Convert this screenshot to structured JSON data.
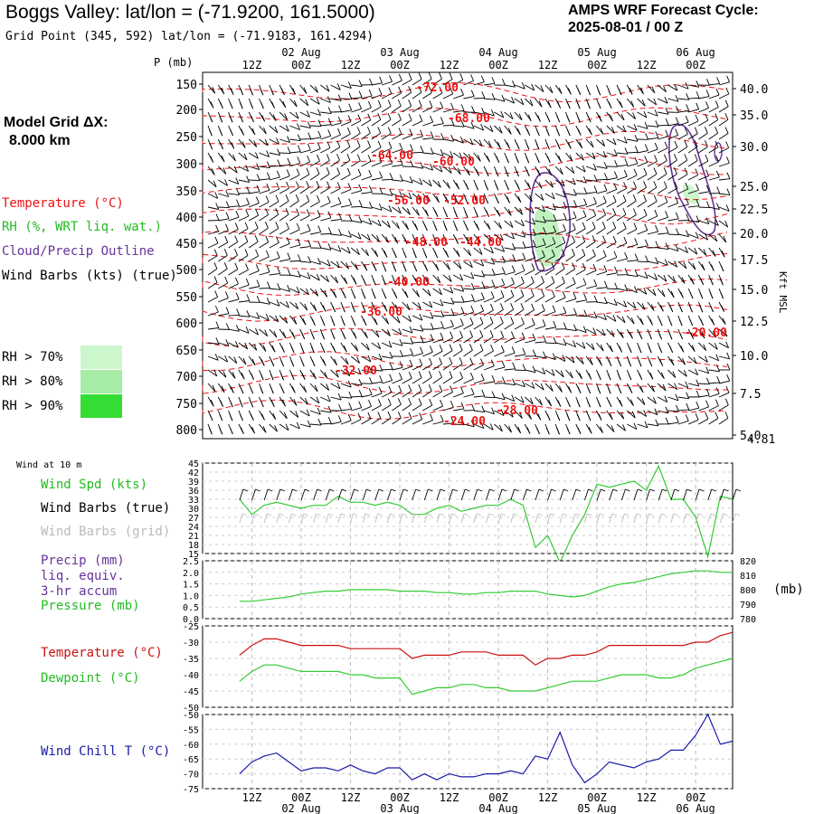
{
  "header": {
    "title": "Boggs Valley:  lat/lon = (-71.9200, 161.5000)",
    "subtitle": "Grid Point (345, 592) lat/lon = (-71.9183, 161.4294)",
    "cycle_line1": "AMPS WRF Forecast Cycle:",
    "cycle_line2": "2025-08-01 / 00  Z"
  },
  "legend": {
    "model_grid_line1": "Model Grid ΔX:",
    "model_grid_line2": "8.000 km",
    "temperature": "Temperature (°C)",
    "rh": "RH (%, WRT liq. wat.)",
    "cloud": "Cloud/Precip Outline",
    "wind": "Wind Barbs (kts) (true)",
    "rh70": "RH > 70%",
    "rh80": "RH > 80%",
    "rh90": "RH > 90%",
    "colors": {
      "rh70": "#ccf7cc",
      "rh80": "#a6eba6",
      "rh90": "#33dd33",
      "temp": "#ee1111",
      "cloud": "#663399",
      "wind": "#000000"
    }
  },
  "time_axis": {
    "top_ticks": [
      "12Z",
      "00Z",
      "12Z",
      "00Z",
      "12Z",
      "00Z",
      "12Z",
      "00Z",
      "12Z",
      "00Z"
    ],
    "dates": [
      "02 Aug",
      "03 Aug",
      "04 Aug",
      "05 Aug",
      "06 Aug"
    ]
  },
  "main_panel": {
    "left_axis_label": "P (mb)",
    "pressure_ticks": [
      "150",
      "200",
      "250",
      "300",
      "350",
      "400",
      "450",
      "500",
      "550",
      "600",
      "650",
      "700",
      "750",
      "800"
    ],
    "right_ticks": [
      "40.0",
      "35.0",
      "30.0",
      "25.0",
      "22.5",
      "20.0",
      "17.5",
      "15.0",
      "12.5",
      "10.0",
      "7.5",
      "5.0"
    ],
    "right_extra": "4.81",
    "right_axis_label": "Kft MSL",
    "temp_labels": [
      "-72.00",
      "-68.00",
      "-64.00",
      "-60.00",
      "-56.00",
      "-52.00",
      "-48.00",
      "-44.00",
      "-40.00",
      "-36.00",
      "-32.00",
      "-28.00",
      "-24.00",
      "-20.00"
    ]
  },
  "wind_panel": {
    "header": "Wind at 10 m",
    "label_spd": "Wind Spd (kts)",
    "label_true": "Wind Barbs (true)",
    "label_grid": "Wind Barbs (grid)",
    "ticks": [
      "45",
      "42",
      "39",
      "36",
      "33",
      "30",
      "27",
      "24",
      "21",
      "18",
      "15"
    ],
    "colors": {
      "speed": "#33cc33",
      "grid": "#bbbbbb"
    }
  },
  "precip_panel": {
    "label1": "Precip (mm)",
    "label2": "liq. equiv.",
    "label3": "3-hr accum",
    "label4": "Pressure (mb)",
    "left_ticks": [
      "2.5",
      "2.0",
      "1.5",
      "1.0",
      "0.5",
      "0.0"
    ],
    "right_ticks": [
      "820",
      "810",
      "800",
      "790",
      "780"
    ],
    "right_unit": "(mb)",
    "colors": {
      "precip": "#663399",
      "pressure": "#33cc33"
    }
  },
  "temp_panel": {
    "label_temp": "Temperature (°C)",
    "label_dew": "Dewpoint (°C)",
    "ticks": [
      "-25",
      "-30",
      "-35",
      "-40",
      "-45",
      "-50"
    ],
    "colors": {
      "temp": "#cc1111",
      "dew": "#33cc33"
    }
  },
  "chill_panel": {
    "label": "Wind Chill T (°C)",
    "ticks": [
      "-50",
      "-55",
      "-60",
      "-65",
      "-70",
      "-75"
    ],
    "color": "#1a1aaa"
  },
  "chart_data": [
    {
      "type": "line",
      "title": "Wind at 10 m",
      "x_hours": [
        0,
        3,
        6,
        9,
        12,
        15,
        18,
        21,
        24,
        27,
        30,
        33,
        36,
        39,
        42,
        45,
        48,
        51,
        54,
        57,
        60,
        63,
        66,
        69,
        72,
        75,
        78,
        81,
        84,
        87,
        90,
        93,
        96,
        99,
        102,
        105,
        108,
        111,
        114,
        117,
        120
      ],
      "series": [
        {
          "name": "Wind Spd (kts)",
          "values": [
            33,
            28,
            31,
            32,
            31,
            30,
            31,
            31,
            34,
            32,
            32,
            31,
            32,
            31,
            28,
            28,
            30,
            31,
            29,
            30,
            31,
            31,
            33,
            31,
            17,
            21,
            12,
            21,
            28,
            38,
            37,
            38,
            39,
            36,
            44,
            33,
            33,
            27,
            14,
            34,
            33
          ]
        }
      ],
      "ylim": [
        15,
        45
      ]
    },
    {
      "type": "line",
      "title": "Pressure (mb)",
      "x_hours": [
        0,
        3,
        6,
        9,
        12,
        15,
        18,
        21,
        24,
        27,
        30,
        33,
        36,
        39,
        42,
        45,
        48,
        51,
        54,
        57,
        60,
        63,
        66,
        69,
        72,
        75,
        78,
        81,
        84,
        87,
        90,
        93,
        96,
        99,
        102,
        105,
        108,
        111,
        114,
        117,
        120
      ],
      "series": [
        {
          "name": "Pressure (mb)",
          "values": [
            792,
            792,
            793,
            794,
            795,
            797,
            798,
            799,
            799,
            800,
            800,
            800,
            800,
            799,
            799,
            799,
            798,
            798,
            797,
            797,
            798,
            798,
            799,
            799,
            799,
            797,
            796,
            795,
            796,
            799,
            802,
            804,
            805,
            807,
            809,
            811,
            812,
            813,
            813,
            812,
            812
          ]
        }
      ],
      "ylim": [
        780,
        820
      ]
    },
    {
      "type": "line",
      "title": "Temperature / Dewpoint (°C)",
      "x_hours": [
        0,
        3,
        6,
        9,
        12,
        15,
        18,
        21,
        24,
        27,
        30,
        33,
        36,
        39,
        42,
        45,
        48,
        51,
        54,
        57,
        60,
        63,
        66,
        69,
        72,
        75,
        78,
        81,
        84,
        87,
        90,
        93,
        96,
        99,
        102,
        105,
        108,
        111,
        114,
        117,
        120
      ],
      "series": [
        {
          "name": "Temperature (°C)",
          "values": [
            -34,
            -31,
            -29,
            -29,
            -30,
            -31,
            -31,
            -31,
            -31,
            -32,
            -32,
            -32,
            -32,
            -32,
            -35,
            -34,
            -34,
            -34,
            -33,
            -33,
            -33,
            -34,
            -34,
            -34,
            -37,
            -35,
            -35,
            -34,
            -34,
            -33,
            -31,
            -31,
            -31,
            -31,
            -31,
            -31,
            -31,
            -30,
            -30,
            -28,
            -27
          ]
        },
        {
          "name": "Dewpoint (°C)",
          "values": [
            -42,
            -39,
            -37,
            -37,
            -38,
            -39,
            -39,
            -39,
            -39,
            -40,
            -40,
            -41,
            -41,
            -41,
            -46,
            -45,
            -44,
            -44,
            -43,
            -43,
            -44,
            -44,
            -45,
            -45,
            -45,
            -44,
            -43,
            -42,
            -42,
            -42,
            -41,
            -40,
            -40,
            -40,
            -41,
            -41,
            -40,
            -38,
            -37,
            -36,
            -35
          ]
        }
      ],
      "ylim": [
        -50,
        -25
      ]
    },
    {
      "type": "line",
      "title": "Wind Chill T (°C)",
      "x_hours": [
        0,
        3,
        6,
        9,
        12,
        15,
        18,
        21,
        24,
        27,
        30,
        33,
        36,
        39,
        42,
        45,
        48,
        51,
        54,
        57,
        60,
        63,
        66,
        69,
        72,
        75,
        78,
        81,
        84,
        87,
        90,
        93,
        96,
        99,
        102,
        105,
        108,
        111,
        114,
        117,
        120
      ],
      "series": [
        {
          "name": "Wind Chill T (°C)",
          "values": [
            -70,
            -66,
            -64,
            -63,
            -66,
            -69,
            -68,
            -68,
            -69,
            -67,
            -69,
            -70,
            -68,
            -68,
            -72,
            -70,
            -72,
            -70,
            -71,
            -71,
            -70,
            -70,
            -69,
            -70,
            -64,
            -65,
            -56,
            -67,
            -73,
            -70,
            -66,
            -67,
            -68,
            -66,
            -65,
            -62,
            -62,
            -57,
            -50,
            -60,
            -59
          ]
        }
      ],
      "ylim": [
        -75,
        -50
      ]
    }
  ]
}
